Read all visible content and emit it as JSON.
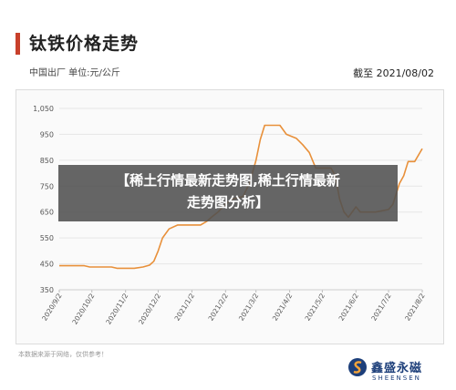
{
  "header": {
    "title": "钛铁价格走势",
    "meta": "中国出厂  单位:元/公斤",
    "as_of": "截至 2021/08/02"
  },
  "overlay": {
    "line1": "【稀土行情最新走势图,稀土行情最新",
    "line2": "走势图分析】"
  },
  "footer": {
    "note": "本数据来源于网络，仅供参考！",
    "brand_cn": "鑫盛永磁",
    "brand_en": "SHEENSEN"
  },
  "colors": {
    "line": "#e8903a",
    "accent": "#c8402b",
    "brand": "#1d3f7a"
  },
  "chart_data": {
    "type": "line",
    "title": "钛铁价格走势",
    "ylim": [
      350,
      1050
    ],
    "y_ticks": [
      "1,050",
      "950",
      "850",
      "750",
      "650",
      "550",
      "450",
      "350"
    ],
    "y_tick_values": [
      1050,
      950,
      850,
      750,
      650,
      550,
      450,
      350
    ],
    "x_ticks": [
      "2020/9/2",
      "2020/10/2",
      "2020/11/2",
      "2020/12/2",
      "2021/1/2",
      "2021/2/2",
      "2021/3/2",
      "2021/4/2",
      "2021/5/2",
      "2021/6/2",
      "2021/7/2",
      "2021/8/2"
    ],
    "grid": true,
    "series": [
      {
        "values": [
          [
            "2020/9/2",
            443
          ],
          [
            "2020/9/25",
            443
          ],
          [
            "2020/9/30",
            438
          ],
          [
            "2020/10/20",
            438
          ],
          [
            "2020/10/25",
            433
          ],
          [
            "2020/11/10",
            433
          ],
          [
            "2020/11/18",
            438
          ],
          [
            "2020/11/24",
            445
          ],
          [
            "2020/11/28",
            460
          ],
          [
            "2020/12/2",
            500
          ],
          [
            "2020/12/6",
            550
          ],
          [
            "2020/12/12",
            585
          ],
          [
            "2020/12/20",
            600
          ],
          [
            "2021/1/10",
            600
          ],
          [
            "2021/1/16",
            615
          ],
          [
            "2021/1/20",
            630
          ],
          [
            "2021/1/26",
            650
          ],
          [
            "2021/2/2",
            680
          ],
          [
            "2021/2/8",
            700
          ],
          [
            "2021/2/18",
            710
          ],
          [
            "2021/2/24",
            760
          ],
          [
            "2021/3/2",
            850
          ],
          [
            "2021/3/6",
            930
          ],
          [
            "2021/3/10",
            985
          ],
          [
            "2021/3/24",
            985
          ],
          [
            "2021/3/30",
            950
          ],
          [
            "2021/4/8",
            935
          ],
          [
            "2021/4/14",
            910
          ],
          [
            "2021/4/20",
            880
          ],
          [
            "2021/4/26",
            820
          ],
          [
            "2021/5/10",
            820
          ],
          [
            "2021/5/14",
            790
          ],
          [
            "2021/5/18",
            700
          ],
          [
            "2021/5/22",
            650
          ],
          [
            "2021/5/26",
            630
          ],
          [
            "2021/6/2",
            670
          ],
          [
            "2021/6/6",
            650
          ],
          [
            "2021/6/20",
            650
          ],
          [
            "2021/7/2",
            660
          ],
          [
            "2021/7/6",
            680
          ],
          [
            "2021/7/12",
            760
          ],
          [
            "2021/7/16",
            790
          ],
          [
            "2021/7/20",
            845
          ],
          [
            "2021/7/26",
            845
          ],
          [
            "2021/8/2",
            895
          ]
        ]
      }
    ]
  }
}
